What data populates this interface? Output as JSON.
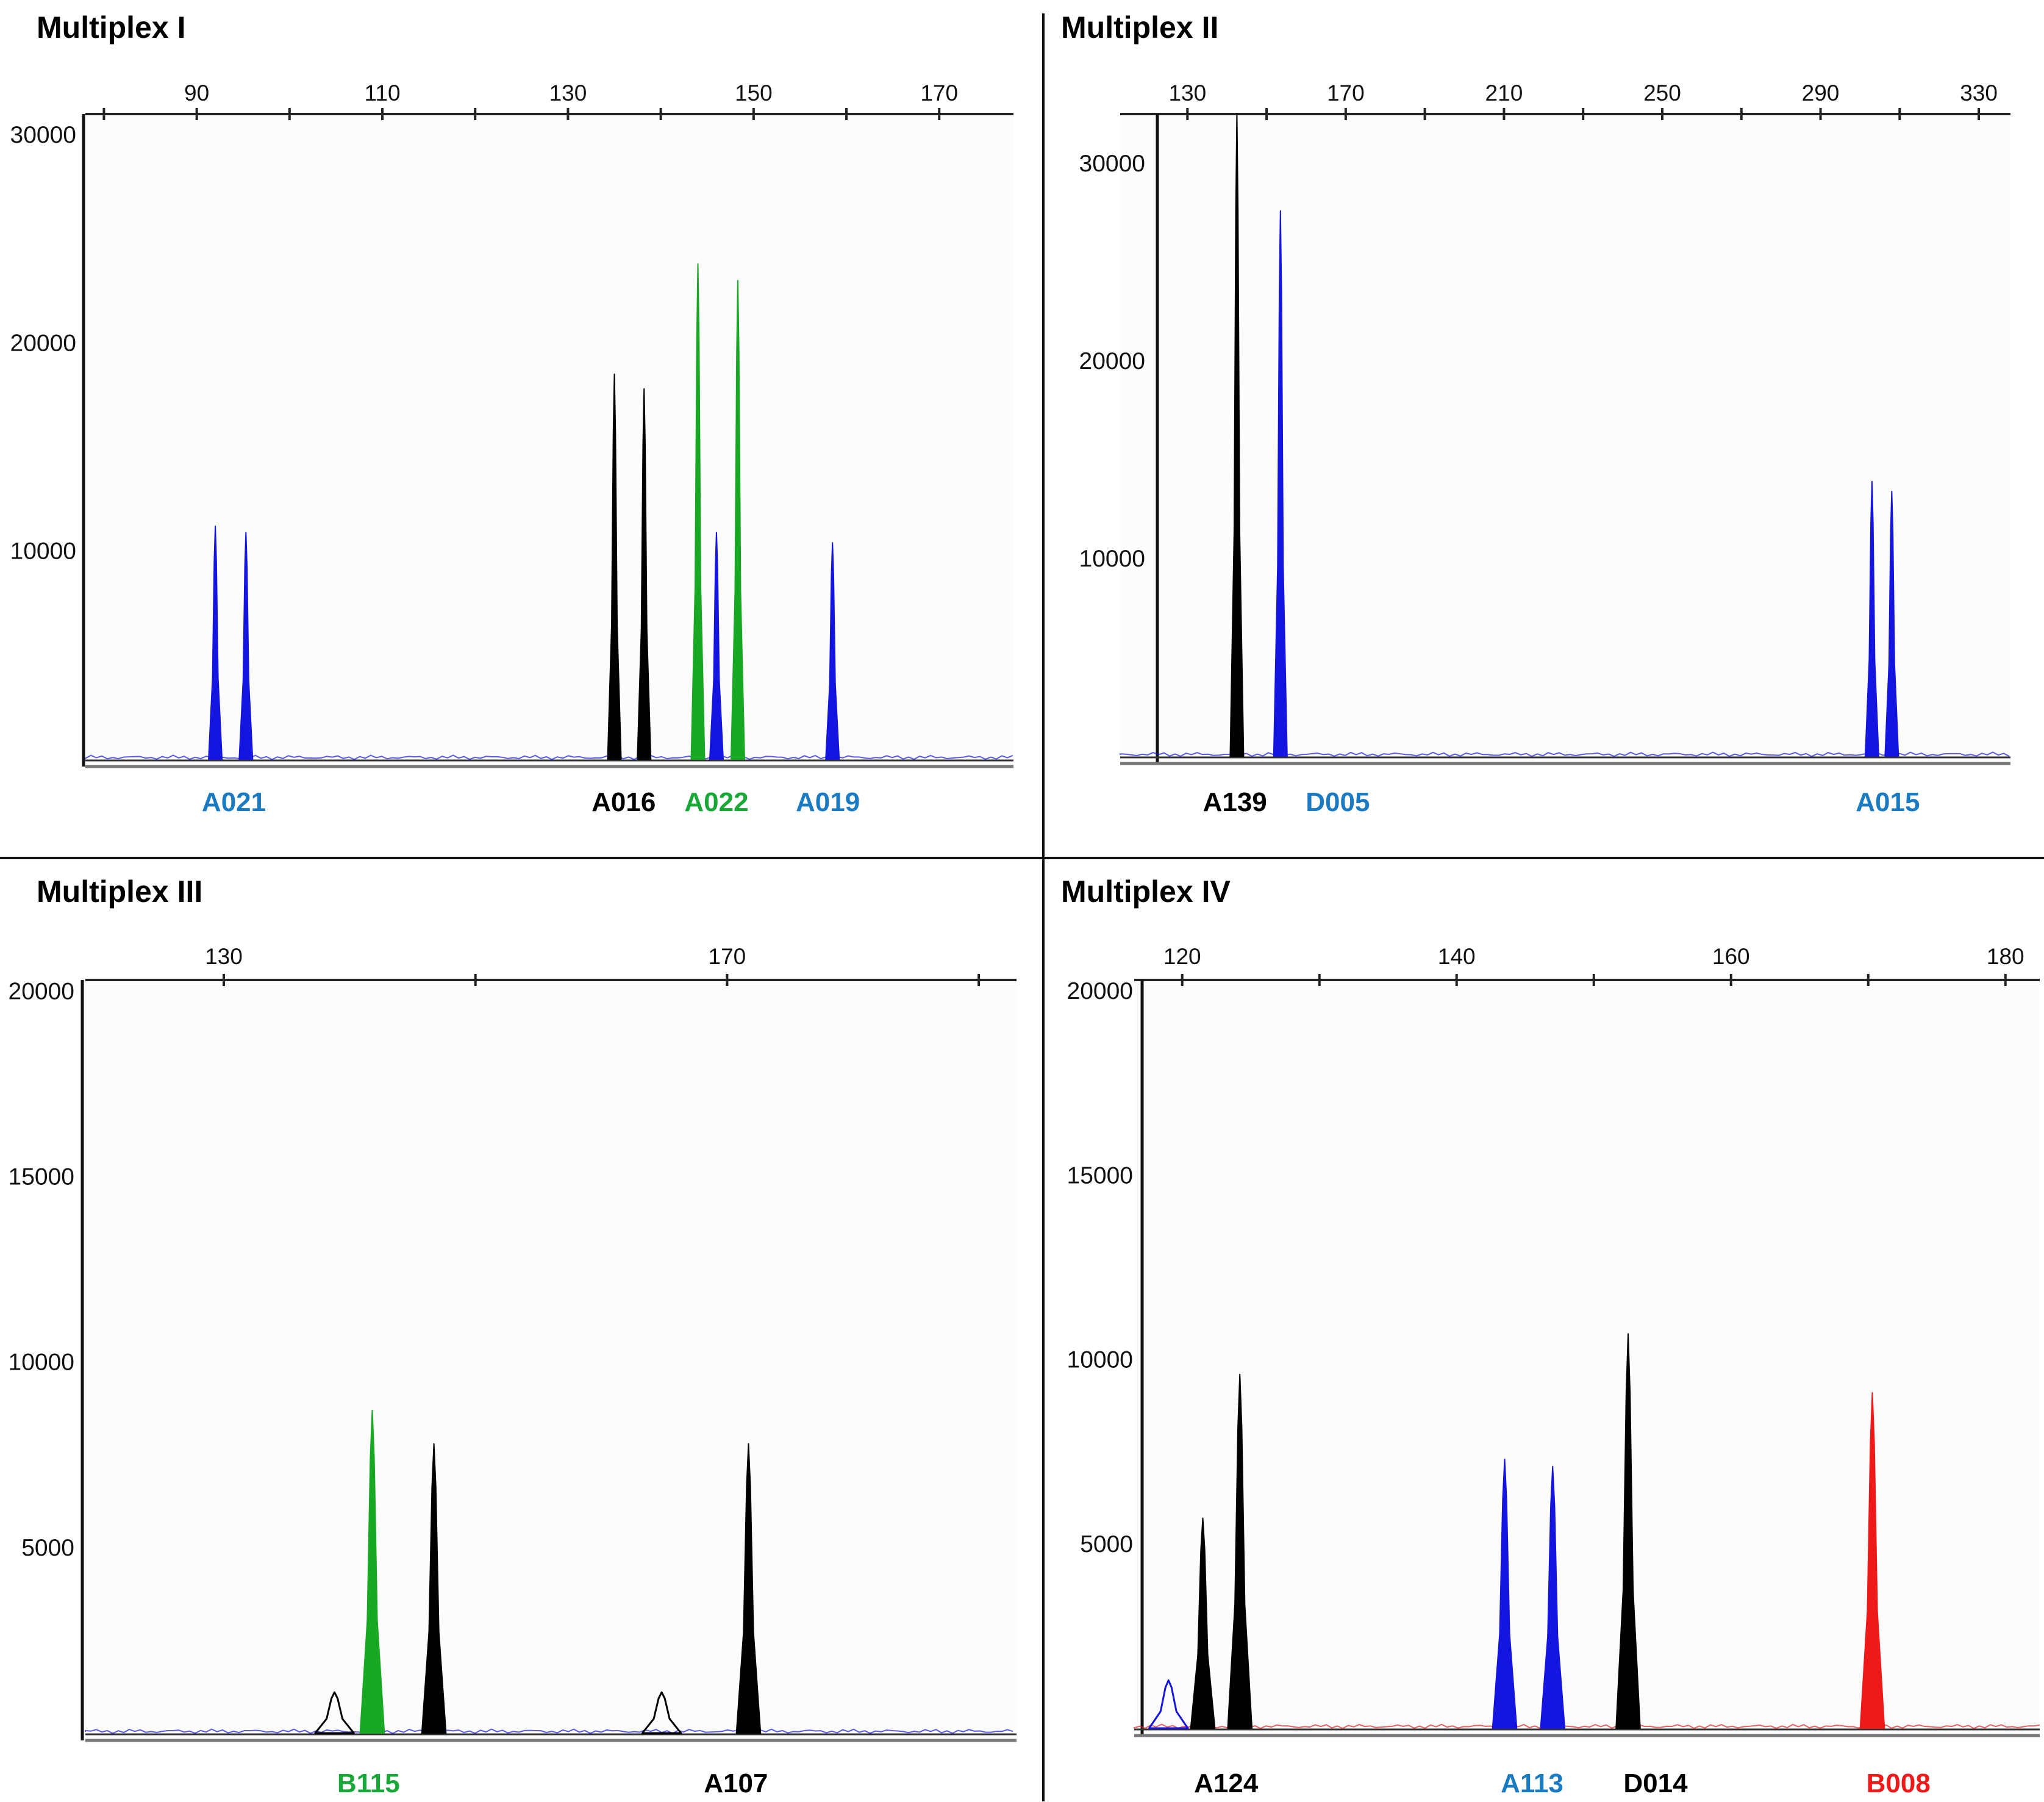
{
  "chart_data": [
    {
      "type": "line",
      "title": "Multiplex I",
      "xlim": [
        78,
        178
      ],
      "xticks": [
        90,
        110,
        130,
        150,
        170
      ],
      "ylim": [
        0,
        31000
      ],
      "yticks": [
        10000,
        20000,
        30000
      ],
      "grid": false,
      "colors": {
        "blue": "#1515e0",
        "black": "#000000",
        "green": "#19a824",
        "red": "#ee1a1a"
      },
      "series": [
        {
          "color": "green",
          "peaks": [
            [
              144.0,
              23800
            ],
            [
              148.3,
              23000
            ]
          ]
        },
        {
          "color": "black",
          "peaks": [
            [
              135.0,
              18500
            ],
            [
              138.2,
              17800
            ]
          ]
        },
        {
          "color": "blue",
          "peaks": [
            [
              92.0,
              11200
            ],
            [
              95.3,
              10900
            ],
            [
              146.0,
              10900
            ],
            [
              158.5,
              10400
            ]
          ]
        }
      ],
      "markers": [
        {
          "text": "A021",
          "x": 94,
          "color": "#1a7bc2"
        },
        {
          "text": "A016",
          "x": 136,
          "color": "#000000"
        },
        {
          "text": "A022",
          "x": 146,
          "color": "#19a838"
        },
        {
          "text": "A019",
          "x": 158,
          "color": "#1a7bc2"
        }
      ]
    },
    {
      "type": "line",
      "title": "Multiplex II",
      "xlim": [
        113,
        338
      ],
      "xticks": [
        130,
        170,
        210,
        250,
        290,
        330
      ],
      "ylim": [
        0,
        32500
      ],
      "yticks": [
        10000,
        20000,
        30000
      ],
      "grid": false,
      "colors": {
        "blue": "#1515e0",
        "black": "#000000",
        "green": "#19a824",
        "red": "#ee1a1a"
      },
      "series": [
        {
          "color": "black",
          "peaks": [
            [
              142.5,
              32500
            ]
          ]
        },
        {
          "color": "blue",
          "peaks": [
            [
              153.5,
              27600
            ],
            [
              303.0,
              13900
            ],
            [
              308.0,
              13400
            ]
          ]
        }
      ],
      "markers": [
        {
          "text": "A139",
          "x": 142,
          "color": "#000000"
        },
        {
          "text": "D005",
          "x": 168,
          "color": "#1a7bc2"
        },
        {
          "text": "A015",
          "x": 307,
          "color": "#1a7bc2"
        }
      ]
    },
    {
      "type": "line",
      "title": "Multiplex III",
      "xlim": [
        119,
        193
      ],
      "xticks": [
        130,
        170
      ],
      "ylim": [
        0,
        20300
      ],
      "yticks": [
        5000,
        10000,
        15000,
        20000
      ],
      "grid": false,
      "colors": {
        "blue": "#1515e0",
        "black": "#000000",
        "green": "#19a824",
        "red": "#ee1a1a"
      },
      "series": [
        {
          "color": "green",
          "peaks": [
            [
              141.8,
              8700
            ]
          ]
        },
        {
          "color": "black",
          "peaks": [
            [
              146.7,
              7800
            ],
            [
              171.7,
              7800
            ]
          ]
        },
        {
          "color": "black-outline",
          "peaks": [
            [
              138.8,
              1100
            ],
            [
              164.8,
              1100
            ]
          ]
        }
      ],
      "markers": [
        {
          "text": "B115",
          "x": 141.5,
          "color": "#19a838"
        },
        {
          "text": "A107",
          "x": 170.7,
          "color": "#000000"
        }
      ]
    },
    {
      "type": "line",
      "title": "Multiplex IV",
      "xlim": [
        116.5,
        182.5
      ],
      "xticks": [
        120,
        140,
        160,
        180
      ],
      "ylim": [
        0,
        20300
      ],
      "yticks": [
        5000,
        10000,
        15000,
        20000
      ],
      "grid": false,
      "colors": {
        "blue": "#1515e0",
        "black": "#000000",
        "green": "#19a824",
        "red": "#ee1a1a"
      },
      "series": [
        {
          "color": "black",
          "peaks": [
            [
              121.5,
              5700
            ],
            [
              124.2,
              9600
            ],
            [
              152.5,
              10700
            ]
          ]
        },
        {
          "color": "blue",
          "peaks": [
            [
              143.5,
              7300
            ],
            [
              147.0,
              7100
            ]
          ]
        },
        {
          "color": "blue-outline",
          "peaks": [
            [
              119.0,
              1300
            ]
          ]
        },
        {
          "color": "red",
          "peaks": [
            [
              170.3,
              9100
            ]
          ]
        }
      ],
      "markers": [
        {
          "text": "A124",
          "x": 123.2,
          "color": "#000000"
        },
        {
          "text": "A113",
          "x": 145.5,
          "color": "#1a7bc2"
        },
        {
          "text": "D014",
          "x": 154.5,
          "color": "#000000"
        },
        {
          "text": "B008",
          "x": 172.2,
          "color": "#ee1a1a"
        }
      ]
    }
  ]
}
